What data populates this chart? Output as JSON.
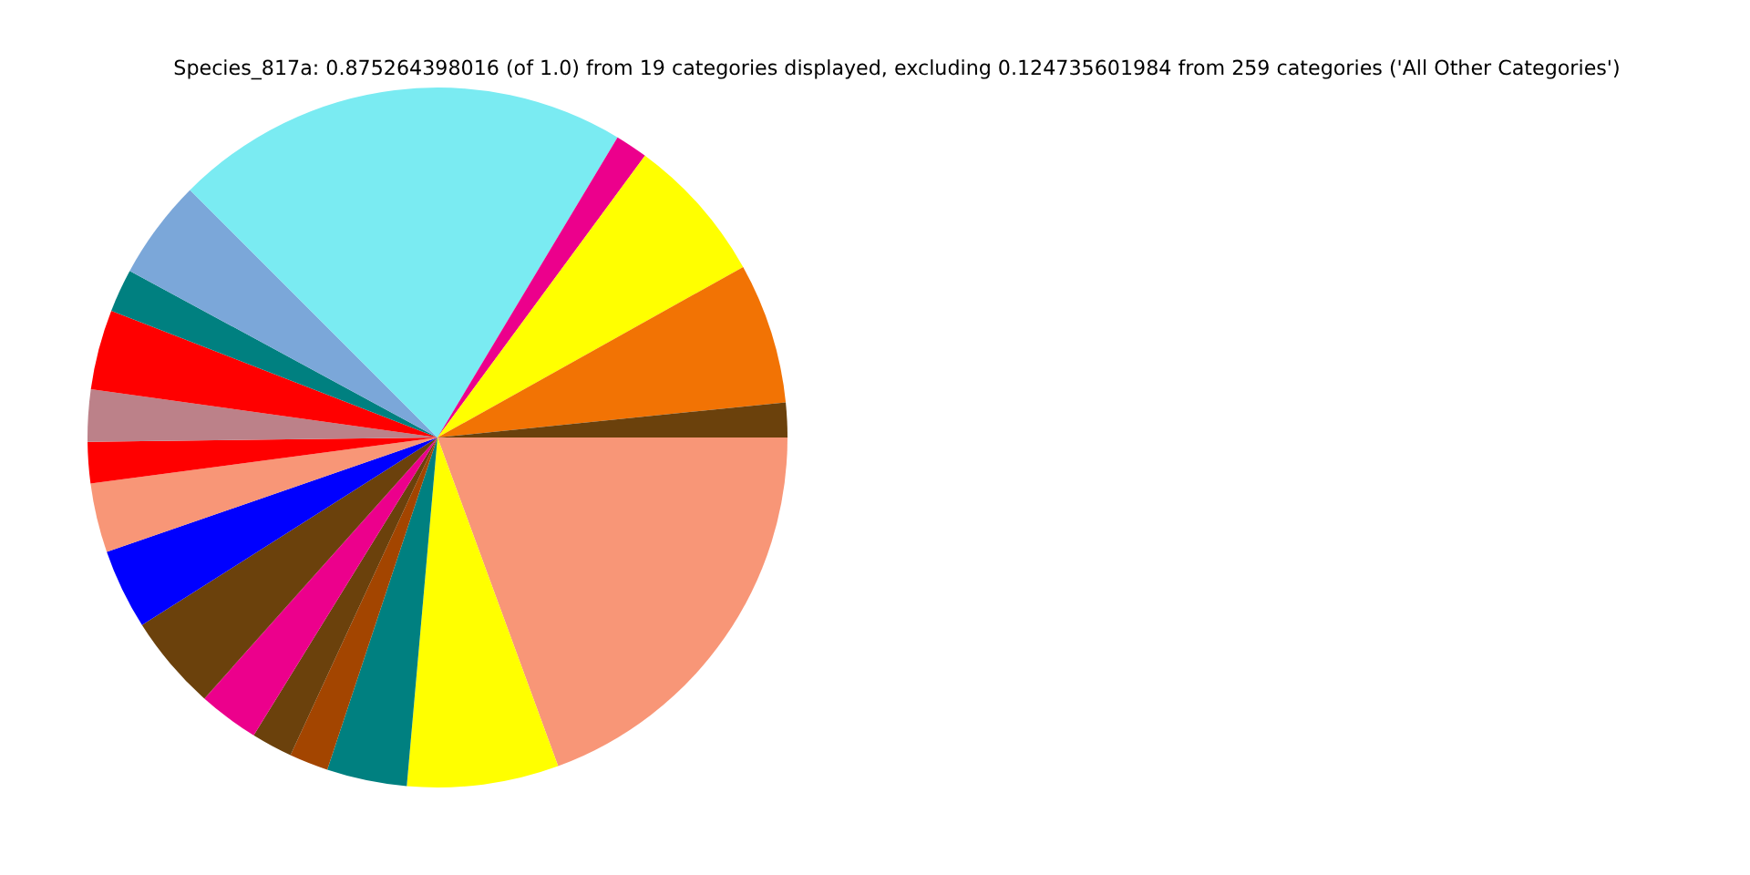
{
  "chart_data": {
    "type": "pie",
    "title": "Species_817a: 0.875264398016 (of 1.0) from 19 categories displayed, excluding 0.124735601984 from 259 categories ('All Other Categories')",
    "categories": [
      null,
      null,
      null,
      null,
      null,
      null,
      null,
      null,
      null,
      null,
      null,
      null,
      null,
      null,
      null,
      null,
      null,
      null,
      null
    ],
    "values": [
      1.6,
      6.5,
      6.8,
      1.5,
      21.1,
      4.6,
      2.0,
      3.7,
      2.4,
      1.9,
      3.2,
      3.7,
      4.4,
      2.8,
      1.9,
      1.8,
      3.7,
      7.0,
      19.4
    ],
    "colors": [
      "#6b410c",
      "#f27304",
      "#ffff00",
      "#ec008c",
      "#7aebf2",
      "#7ba7d9",
      "#008080",
      "#ff0000",
      "#bc8189",
      "#ff0000",
      "#f89677",
      "#0000ff",
      "#6b410c",
      "#ec008c",
      "#6b410c",
      "#a34500",
      "#008080",
      "#ffff00",
      "#f89677"
    ]
  }
}
